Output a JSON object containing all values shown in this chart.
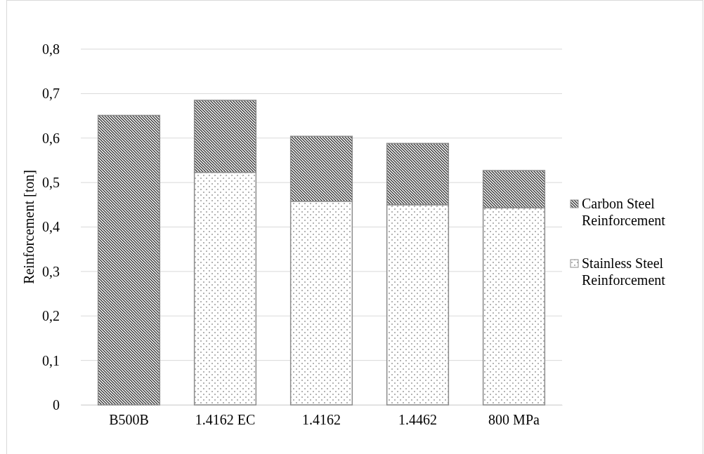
{
  "chart_data": {
    "type": "bar",
    "ylabel": "Reinforcement [ton]",
    "categories": [
      "B500B",
      "1.4162 EC",
      "1.4162",
      "1.4462",
      "800 MPa"
    ],
    "stacked": true,
    "series": [
      {
        "name": "Stainless Steel Reinforcement",
        "color": "#8c8c8c",
        "values": [
          null,
          0.523,
          0.458,
          0.45,
          0.443
        ]
      },
      {
        "name": "Carbon Steel Reinforcement",
        "color": "#8c8c8c",
        "values": [
          0.651,
          0.162,
          0.146,
          0.138,
          0.084
        ]
      }
    ],
    "ylim": [
      0,
      0.8
    ],
    "yticks": [
      {
        "value": 0,
        "label": "0"
      },
      {
        "value": 0.1,
        "label": "0,1"
      },
      {
        "value": 0.2,
        "label": "0,2"
      },
      {
        "value": 0.3,
        "label": "0,3"
      },
      {
        "value": 0.4,
        "label": "0,4"
      },
      {
        "value": 0.5,
        "label": "0,5"
      },
      {
        "value": 0.6,
        "label": "0,6"
      },
      {
        "value": 0.7,
        "label": "0,7"
      },
      {
        "value": 0.8,
        "label": "0,8"
      }
    ],
    "grid": "y",
    "legend": "right"
  }
}
